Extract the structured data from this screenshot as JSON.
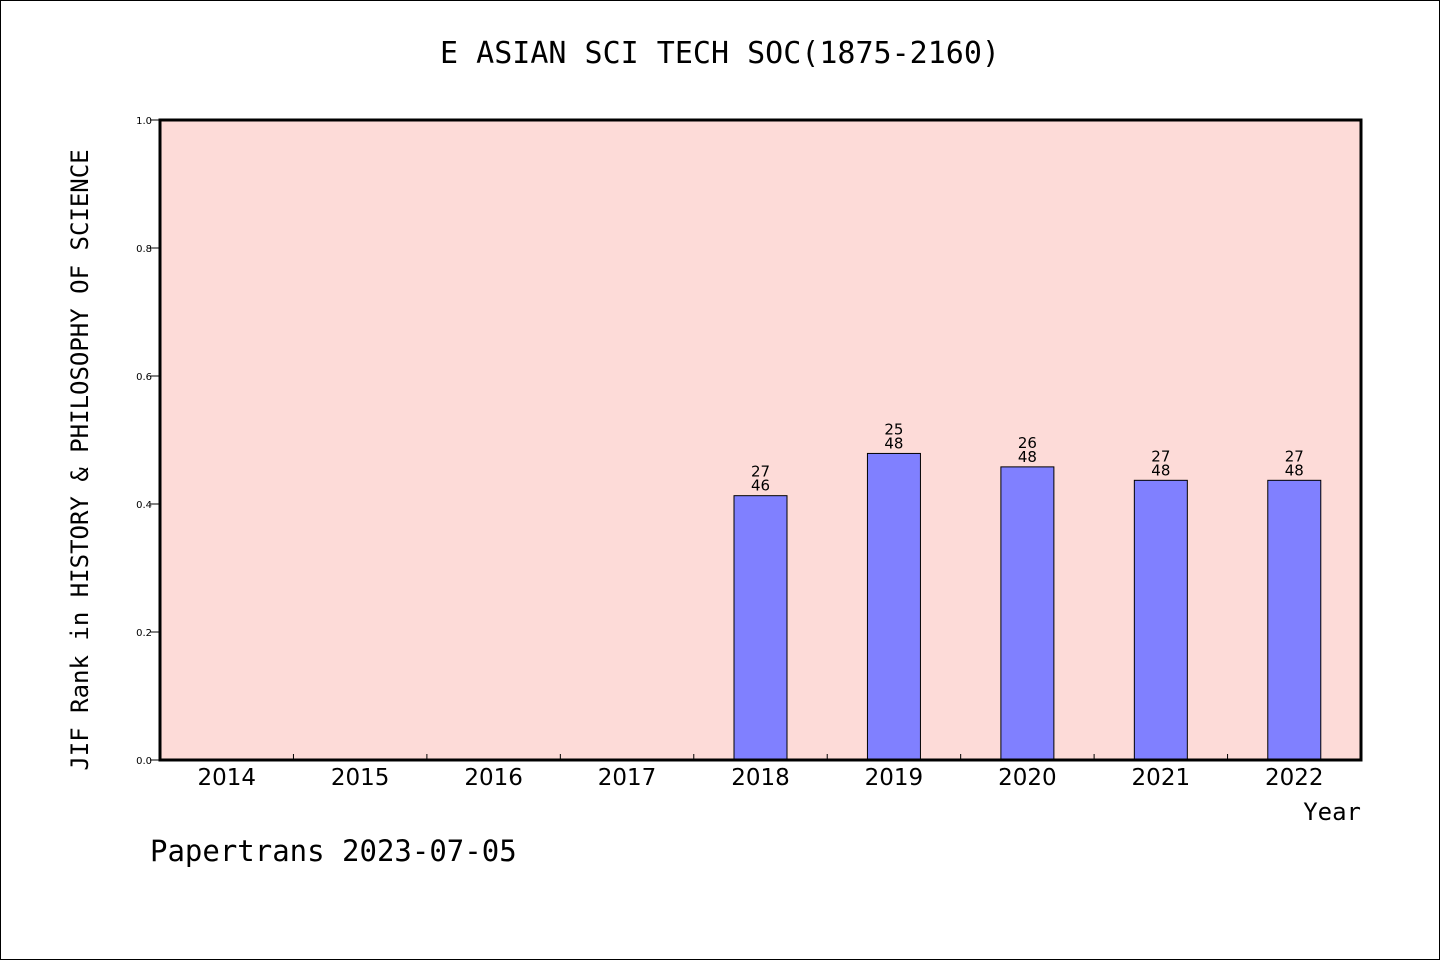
{
  "chart_data": {
    "type": "bar",
    "title": "E ASIAN SCI TECH SOC(1875-2160)",
    "xlabel": "Year",
    "ylabel": "JIF Rank in HISTORY & PHILOSOPHY OF SCIENCE",
    "ylim": [
      0,
      1.0
    ],
    "yticks": [
      "0.0",
      "0.2",
      "0.4",
      "0.6",
      "0.8",
      "1.0"
    ],
    "categories": [
      "2014",
      "2015",
      "2016",
      "2017",
      "2018",
      "2019",
      "2020",
      "2021",
      "2022"
    ],
    "values": [
      null,
      null,
      null,
      null,
      0.413,
      0.479,
      0.458,
      0.437,
      0.437
    ],
    "labels": [
      null,
      null,
      null,
      null,
      {
        "rank": "27",
        "total": "46"
      },
      {
        "rank": "25",
        "total": "48"
      },
      {
        "rank": "26",
        "total": "48"
      },
      {
        "rank": "27",
        "total": "48"
      },
      {
        "rank": "27",
        "total": "48"
      }
    ],
    "grid": false,
    "colors": {
      "plot_background": "#fddbd8",
      "bar": "#8080ff"
    }
  },
  "footer": {
    "text": "Papertrans 2023-07-05"
  }
}
